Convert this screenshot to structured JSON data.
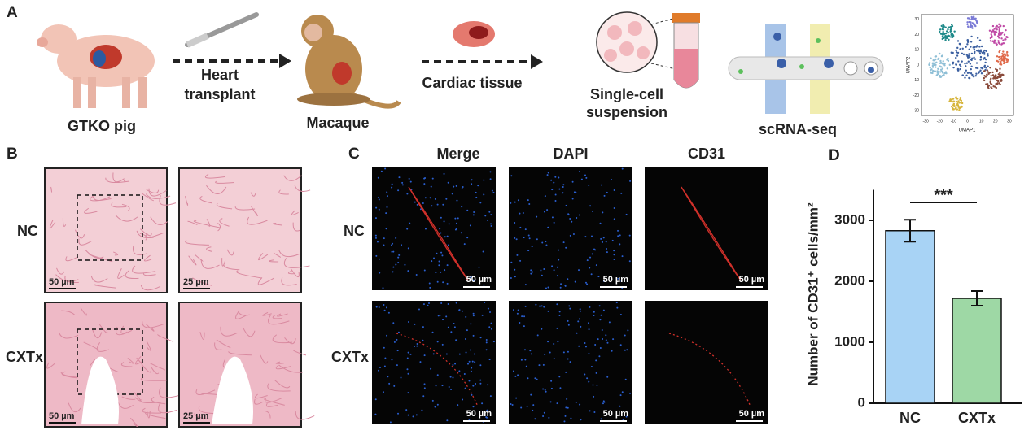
{
  "panel_a": {
    "label": "A",
    "pig": "GTKO pig",
    "transplant_lines": [
      "Heart",
      "transplant"
    ],
    "macaque": "Macaque",
    "tissue": "Cardiac tissue",
    "suspension_lines": [
      "Single-cell",
      "suspension"
    ],
    "seq": "scRNA-seq",
    "umap": {
      "xlabel": "UMAP1",
      "ylabel": "UMAP2",
      "xticks": [
        -30,
        -20,
        -10,
        0,
        10,
        20,
        30
      ],
      "yticks": [
        30,
        20,
        10,
        0,
        -10,
        -20,
        -30
      ]
    }
  },
  "panel_b": {
    "label": "B",
    "rows": [
      "NC",
      "CXTx"
    ],
    "scale_bars": [
      "50 µm",
      "25 µm",
      "50 µm",
      "25 µm"
    ]
  },
  "panel_c": {
    "label": "C",
    "columns": [
      "Merge",
      "DAPI",
      "CD31"
    ],
    "rows": [
      "NC",
      "CXTx"
    ],
    "scale_bars": [
      "50 µm",
      "50 µm",
      "50 µm",
      "50 µm",
      "50 µm",
      "50 µm"
    ]
  },
  "panel_d": {
    "label": "D",
    "significance": "***"
  },
  "chart_data": {
    "type": "bar",
    "ylabel": "Number of CD31⁺ cells/mm²",
    "categories": [
      "NC",
      "CXTx"
    ],
    "values": [
      2830,
      1720
    ],
    "errors": [
      180,
      120
    ],
    "colors": [
      "#a8d3f5",
      "#9ed8a5"
    ],
    "ylim": [
      0,
      3500
    ],
    "yticks": [
      0,
      1000,
      2000,
      3000
    ]
  }
}
